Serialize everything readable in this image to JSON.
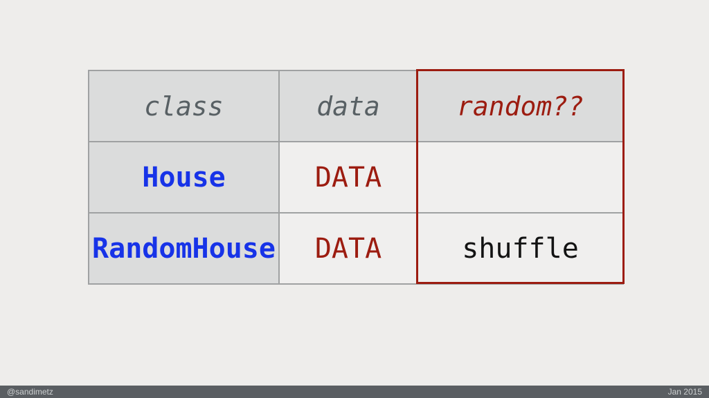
{
  "slide": {
    "table": {
      "headers": [
        {
          "label": "class"
        },
        {
          "label": "data"
        },
        {
          "label": "random??"
        }
      ],
      "rows": [
        {
          "class_name": "House",
          "data": "DATA",
          "random": ""
        },
        {
          "class_name": "RandomHouse",
          "data": "DATA",
          "random": "shuffle"
        }
      ]
    },
    "footer": {
      "handle": "@sandimetz",
      "date": "Jan 2015"
    }
  },
  "colors": {
    "page_background": "#eeedeb",
    "cell_gray_background": "#dbdcdc",
    "cell_light_background": "#f0efee",
    "table_border_gray": "#9fa1a2",
    "highlight_red": "#9c1c10",
    "class_name_blue": "#1733e8",
    "header_text_gray": "#586064",
    "shuffle_text_black": "#131313",
    "footer_bar_background": "#5a5e62",
    "footer_text": "#cdd0d1"
  }
}
